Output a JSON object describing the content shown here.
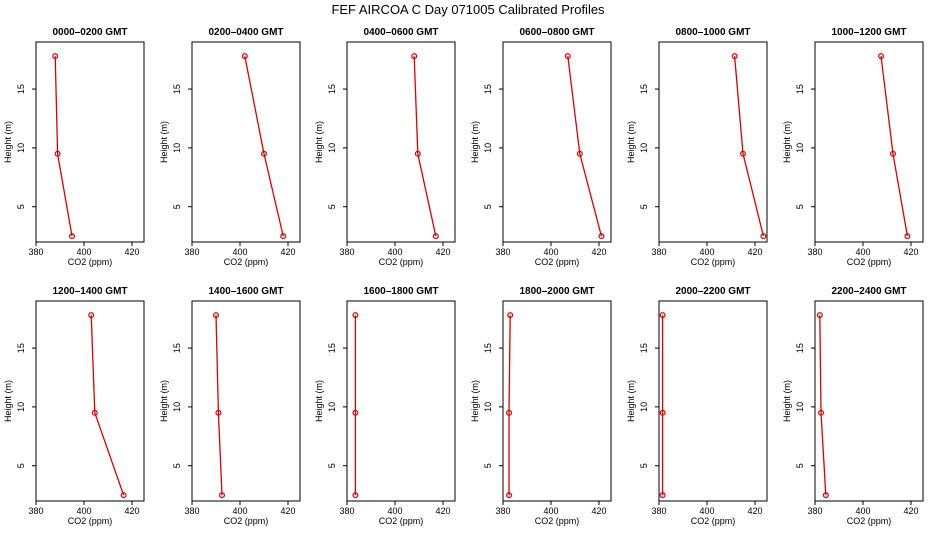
{
  "title": "FEF AIRCOA C  Day 071005  Calibrated Profiles",
  "colors": {
    "series": "#dd0000",
    "axis": "#000000"
  },
  "chart_data": {
    "type": "line",
    "xlabel": "CO2 (ppm)",
    "ylabel": "Height (m)",
    "xlim": [
      380,
      425
    ],
    "ylim": [
      2,
      19
    ],
    "xticks": [
      380,
      400,
      420
    ],
    "yticks": [
      5,
      10,
      15
    ],
    "panels": [
      {
        "title": "0000–0200 GMT",
        "co2": [
          395.0,
          389.0,
          388.0
        ],
        "height": [
          2.5,
          9.5,
          17.8
        ]
      },
      {
        "title": "0200–0400 GMT",
        "co2": [
          418.0,
          410.0,
          402.0
        ],
        "height": [
          2.5,
          9.5,
          17.8
        ]
      },
      {
        "title": "0400–0600 GMT",
        "co2": [
          417.0,
          409.5,
          408.0
        ],
        "height": [
          2.5,
          9.5,
          17.8
        ]
      },
      {
        "title": "0600–0800 GMT",
        "co2": [
          421.0,
          412.0,
          407.0
        ],
        "height": [
          2.5,
          9.5,
          17.8
        ]
      },
      {
        "title": "0800–1000 GMT",
        "co2": [
          423.5,
          415.0,
          411.5
        ],
        "height": [
          2.5,
          9.5,
          17.8
        ]
      },
      {
        "title": "1000–1200 GMT",
        "co2": [
          418.5,
          412.5,
          407.5
        ],
        "height": [
          2.5,
          9.5,
          17.8
        ]
      },
      {
        "title": "1200–1400 GMT",
        "co2": [
          416.5,
          404.5,
          403.0
        ],
        "height": [
          2.5,
          9.5,
          17.8
        ]
      },
      {
        "title": "1400–1600 GMT",
        "co2": [
          392.5,
          391.0,
          390.0
        ],
        "height": [
          2.5,
          9.5,
          17.8
        ]
      },
      {
        "title": "1600–1800 GMT",
        "co2": [
          383.5,
          383.5,
          383.5
        ],
        "height": [
          2.5,
          9.5,
          17.8
        ]
      },
      {
        "title": "1800–2000 GMT",
        "co2": [
          382.5,
          382.5,
          383.0
        ],
        "height": [
          2.5,
          9.5,
          17.8
        ]
      },
      {
        "title": "2000–2200 GMT",
        "co2": [
          381.5,
          381.5,
          381.5
        ],
        "height": [
          2.5,
          9.5,
          17.8
        ]
      },
      {
        "title": "2200–2400 GMT",
        "co2": [
          384.5,
          382.5,
          382.0
        ],
        "height": [
          2.5,
          9.5,
          17.8
        ]
      }
    ]
  }
}
